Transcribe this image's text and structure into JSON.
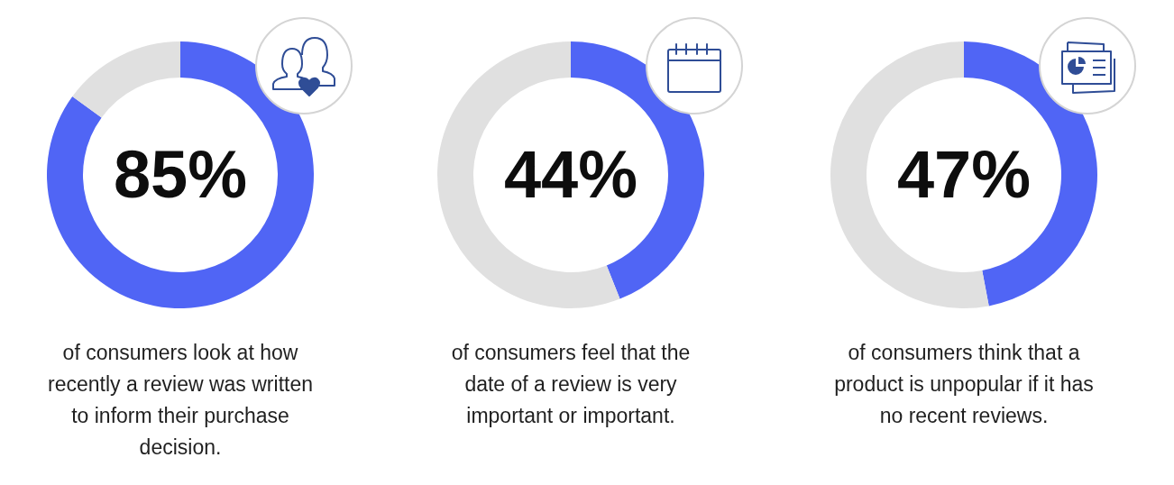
{
  "chart_data": [
    {
      "type": "donut",
      "categories": [
        null,
        null
      ],
      "values": [
        85,
        15
      ],
      "colors": [
        "#5065f5",
        "#e0e0e0"
      ],
      "value_labels": [
        "85%",
        null
      ],
      "annotations": [
        "of consumers look at how recently a review was written to inform their purchase decision."
      ]
    },
    {
      "type": "donut",
      "categories": [
        null,
        null
      ],
      "values": [
        44,
        56
      ],
      "colors": [
        "#5065f5",
        "#e0e0e0"
      ],
      "value_labels": [
        "44%",
        null
      ],
      "annotations": [
        "of consumers feel that the date of a review is very important or important."
      ]
    },
    {
      "type": "donut",
      "categories": [
        null,
        null
      ],
      "values": [
        47,
        53
      ],
      "colors": [
        "#5065f5",
        "#e0e0e0"
      ],
      "value_labels": [
        "47%",
        null
      ],
      "annotations": [
        "of consumers think that a product is unpopular if it has no recent reviews."
      ]
    }
  ]
}
